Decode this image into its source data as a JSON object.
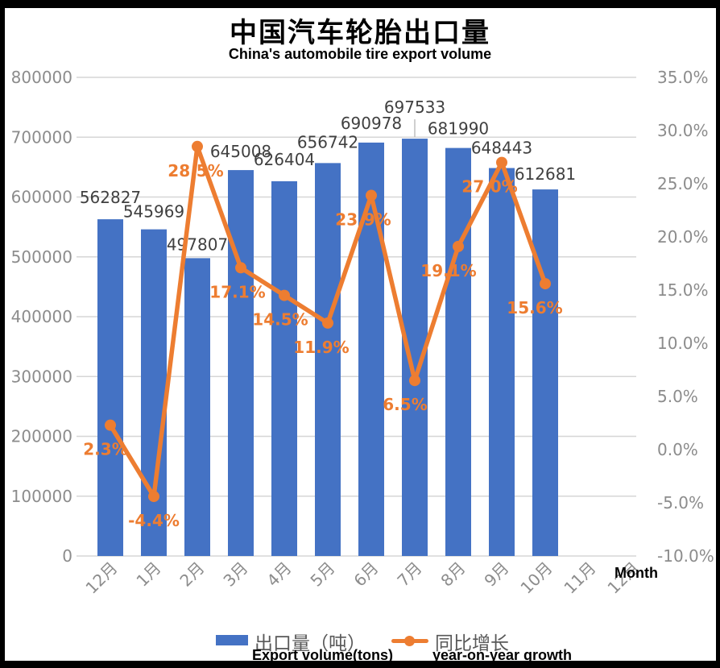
{
  "title": "中国汽车轮胎出口量",
  "subtitle": "China's automobile tire export volume",
  "colors": {
    "bar": "#4472C4",
    "line": "#ED7D31",
    "axis_text": "#8c8c8c",
    "bar_label_text": "#404040",
    "gridline": "#d6d6d6",
    "frame": "#000000"
  },
  "chart_data": {
    "type": "bar",
    "combo": "bar+line",
    "title": "中国汽车轮胎出口量",
    "subtitle": "China's automobile tire export volume",
    "xlabel": "Month",
    "categories": [
      "12月",
      "1月",
      "2月",
      "3月",
      "4月",
      "5月",
      "6月",
      "7月",
      "8月",
      "9月",
      "10月",
      "11月",
      "12月"
    ],
    "series": [
      {
        "name": "出口量（吨）",
        "name_en": "Export volume(tons)",
        "type": "bar",
        "color": "#4472C4",
        "axis": "left",
        "values": [
          562827,
          545969,
          497807,
          645008,
          626404,
          656742,
          690978,
          697533,
          681990,
          648443,
          612681,
          null,
          null
        ],
        "labels": [
          "562827",
          "545969",
          "497807",
          "645008",
          "626404",
          "656742",
          "690978",
          "697533",
          "681990",
          "648443",
          "612681"
        ]
      },
      {
        "name": "同比增长",
        "name_en": "year-on-year growth",
        "type": "line",
        "color": "#ED7D31",
        "axis": "right",
        "values": [
          2.3,
          -4.4,
          28.5,
          17.1,
          14.5,
          11.9,
          23.9,
          6.5,
          19.1,
          27.0,
          15.6,
          null,
          null
        ],
        "labels": [
          "2.3%",
          "-4.4%",
          "28.5%",
          "17.1%",
          "14.5%",
          "11.9%",
          "23.9%",
          "6.5%",
          "19.1%",
          "27.0%",
          "15.6%"
        ]
      }
    ],
    "y_left": {
      "min": 0,
      "max": 800000,
      "step": 100000,
      "ticks": [
        "0",
        "100000",
        "200000",
        "300000",
        "400000",
        "500000",
        "600000",
        "700000",
        "800000"
      ]
    },
    "y_right": {
      "min": -10,
      "max": 35,
      "step": 5,
      "ticks": [
        "-10.0%",
        "-5.0%",
        "0.0%",
        "5.0%",
        "10.0%",
        "15.0%",
        "20.0%",
        "25.0%",
        "30.0%",
        "35.0%"
      ]
    },
    "grid": true,
    "legend_position": "bottom"
  }
}
